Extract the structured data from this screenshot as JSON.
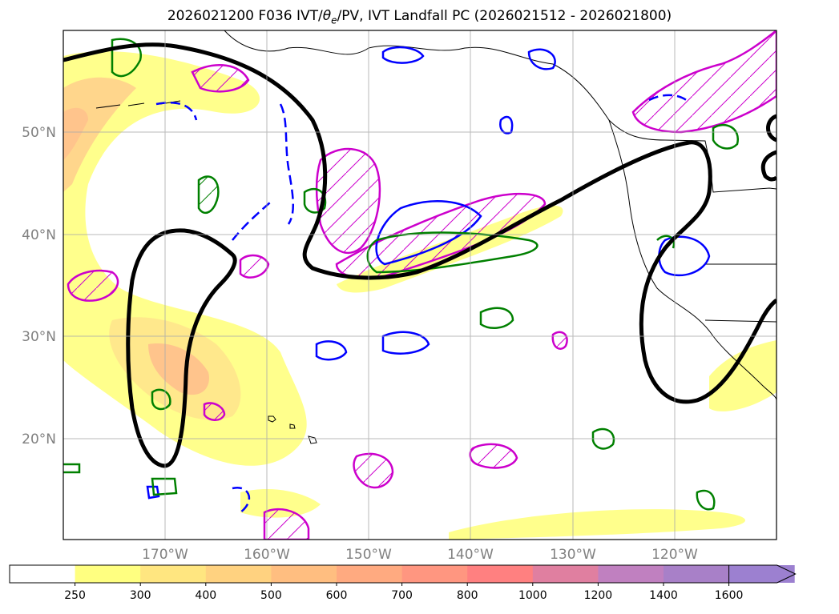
{
  "title": {
    "prefix": "2026021200 F036 IVT/",
    "theta": "θ",
    "theta_sub": "e",
    "suffix": "/PV, IVT Landfall PC (2026021512 - 2026021800)"
  },
  "map": {
    "lat_labels": [
      "50°N",
      "40°N",
      "30°N",
      "20°N"
    ],
    "lon_labels": [
      "170°W",
      "160°W",
      "150°W",
      "140°W",
      "130°W",
      "120°W"
    ],
    "contour_colors": {
      "pc_line": "#000000",
      "theta_e": "#008000",
      "pv_positive": "#0000ff",
      "pv_negative": "#cc00cc"
    }
  },
  "colorbar": {
    "ticks": [
      "250",
      "300",
      "400",
      "500",
      "600",
      "700",
      "800",
      "1000",
      "1200",
      "1400",
      "1600"
    ],
    "colors": [
      "#ffffff",
      "#ffff80",
      "#ffe680",
      "#ffd280",
      "#ffbe80",
      "#ffaa80",
      "#ff9680",
      "#ff8080",
      "#e07fa0",
      "#c080c0",
      "#a880c8",
      "#9c80d0"
    ],
    "extend": "max"
  }
}
